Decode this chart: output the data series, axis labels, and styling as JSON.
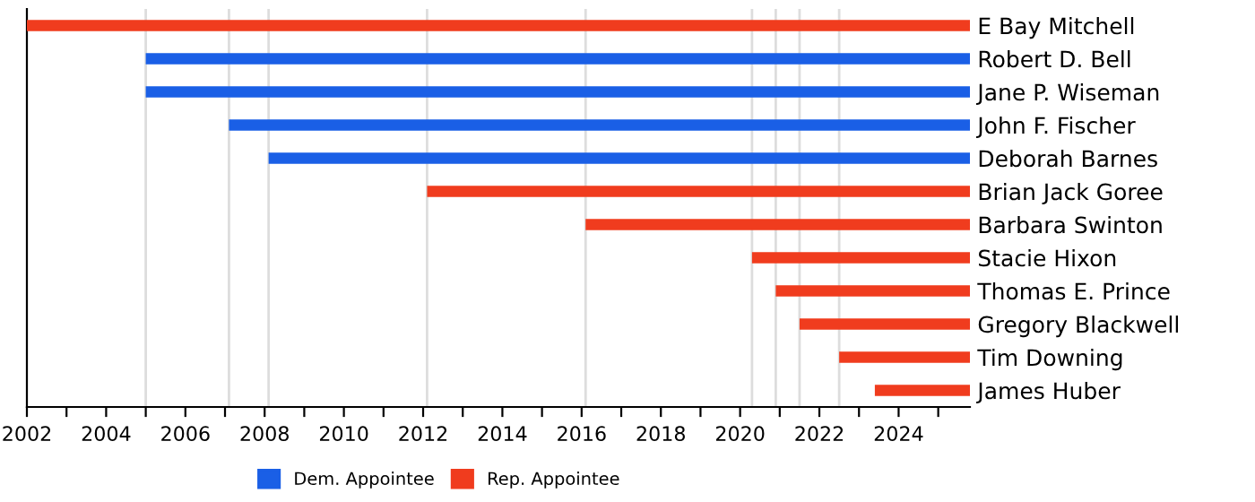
{
  "chart_data": {
    "type": "bar",
    "orientation": "horizontal",
    "categories": [
      "E Bay Mitchell",
      "Robert D. Bell",
      "Jane P. Wiseman",
      "John F. Fischer",
      "Deborah Barnes",
      "Brian Jack Goree",
      "Barbara Swinton",
      "Stacie Hixon",
      "Thomas E. Prince",
      "Gregory Blackwell",
      "Tim Downing",
      "James Huber"
    ],
    "series": [
      {
        "name": "Dem. Appointee",
        "color": "#1a5fe6",
        "base": [
          null,
          2005.0,
          2005.0,
          2007.1,
          2008.1,
          null,
          null,
          null,
          null,
          null,
          null,
          null
        ],
        "values": [
          null,
          20.8,
          20.8,
          18.7,
          17.7,
          null,
          null,
          null,
          null,
          null,
          null,
          null
        ]
      },
      {
        "name": "Rep. Appointee",
        "color": "#f03c1e",
        "base": [
          2002.0,
          null,
          null,
          null,
          null,
          2012.1,
          2016.1,
          2020.3,
          2020.9,
          2021.5,
          2022.5,
          2023.4
        ],
        "values": [
          23.8,
          null,
          null,
          null,
          null,
          13.7,
          9.7,
          5.5,
          4.9,
          4.3,
          3.3,
          2.4
        ]
      }
    ],
    "xlim": [
      2002,
      2025.8
    ],
    "xticks": [
      2002,
      {
        "value": 2003,
        "label": null
      },
      2004,
      {
        "value": 2005,
        "label": null
      },
      2006,
      {
        "value": 2007,
        "label": null
      },
      2008,
      {
        "value": 2009,
        "label": null
      },
      2010,
      {
        "value": 2011,
        "label": null
      },
      2012,
      {
        "value": 2013,
        "label": null
      },
      2014,
      {
        "value": 2015,
        "label": null
      },
      2016,
      {
        "value": 2017,
        "label": null
      },
      2018,
      {
        "value": 2019,
        "label": null
      },
      2020,
      {
        "value": 2021,
        "label": null
      },
      2022,
      {
        "value": 2023,
        "label": null
      },
      2024,
      {
        "value": 2025,
        "label": null
      }
    ],
    "ref_lines": [
      {
        "axis": "x",
        "value": 2005.0,
        "color": "#dddddd"
      },
      {
        "axis": "x",
        "value": 2007.1,
        "color": "#dddddd"
      },
      {
        "axis": "x",
        "value": 2008.1,
        "color": "#dddddd"
      },
      {
        "axis": "x",
        "value": 2012.1,
        "color": "#dddddd"
      },
      {
        "axis": "x",
        "value": 2016.1,
        "color": "#dddddd"
      },
      {
        "axis": "x",
        "value": 2020.3,
        "color": "#dddddd"
      },
      {
        "axis": "x",
        "value": 2020.9,
        "color": "#dddddd"
      },
      {
        "axis": "x",
        "value": 2021.5,
        "color": "#dddddd"
      },
      {
        "axis": "x",
        "value": 2022.5,
        "color": "#dddddd"
      }
    ],
    "grid": false,
    "legend": "bottom"
  }
}
